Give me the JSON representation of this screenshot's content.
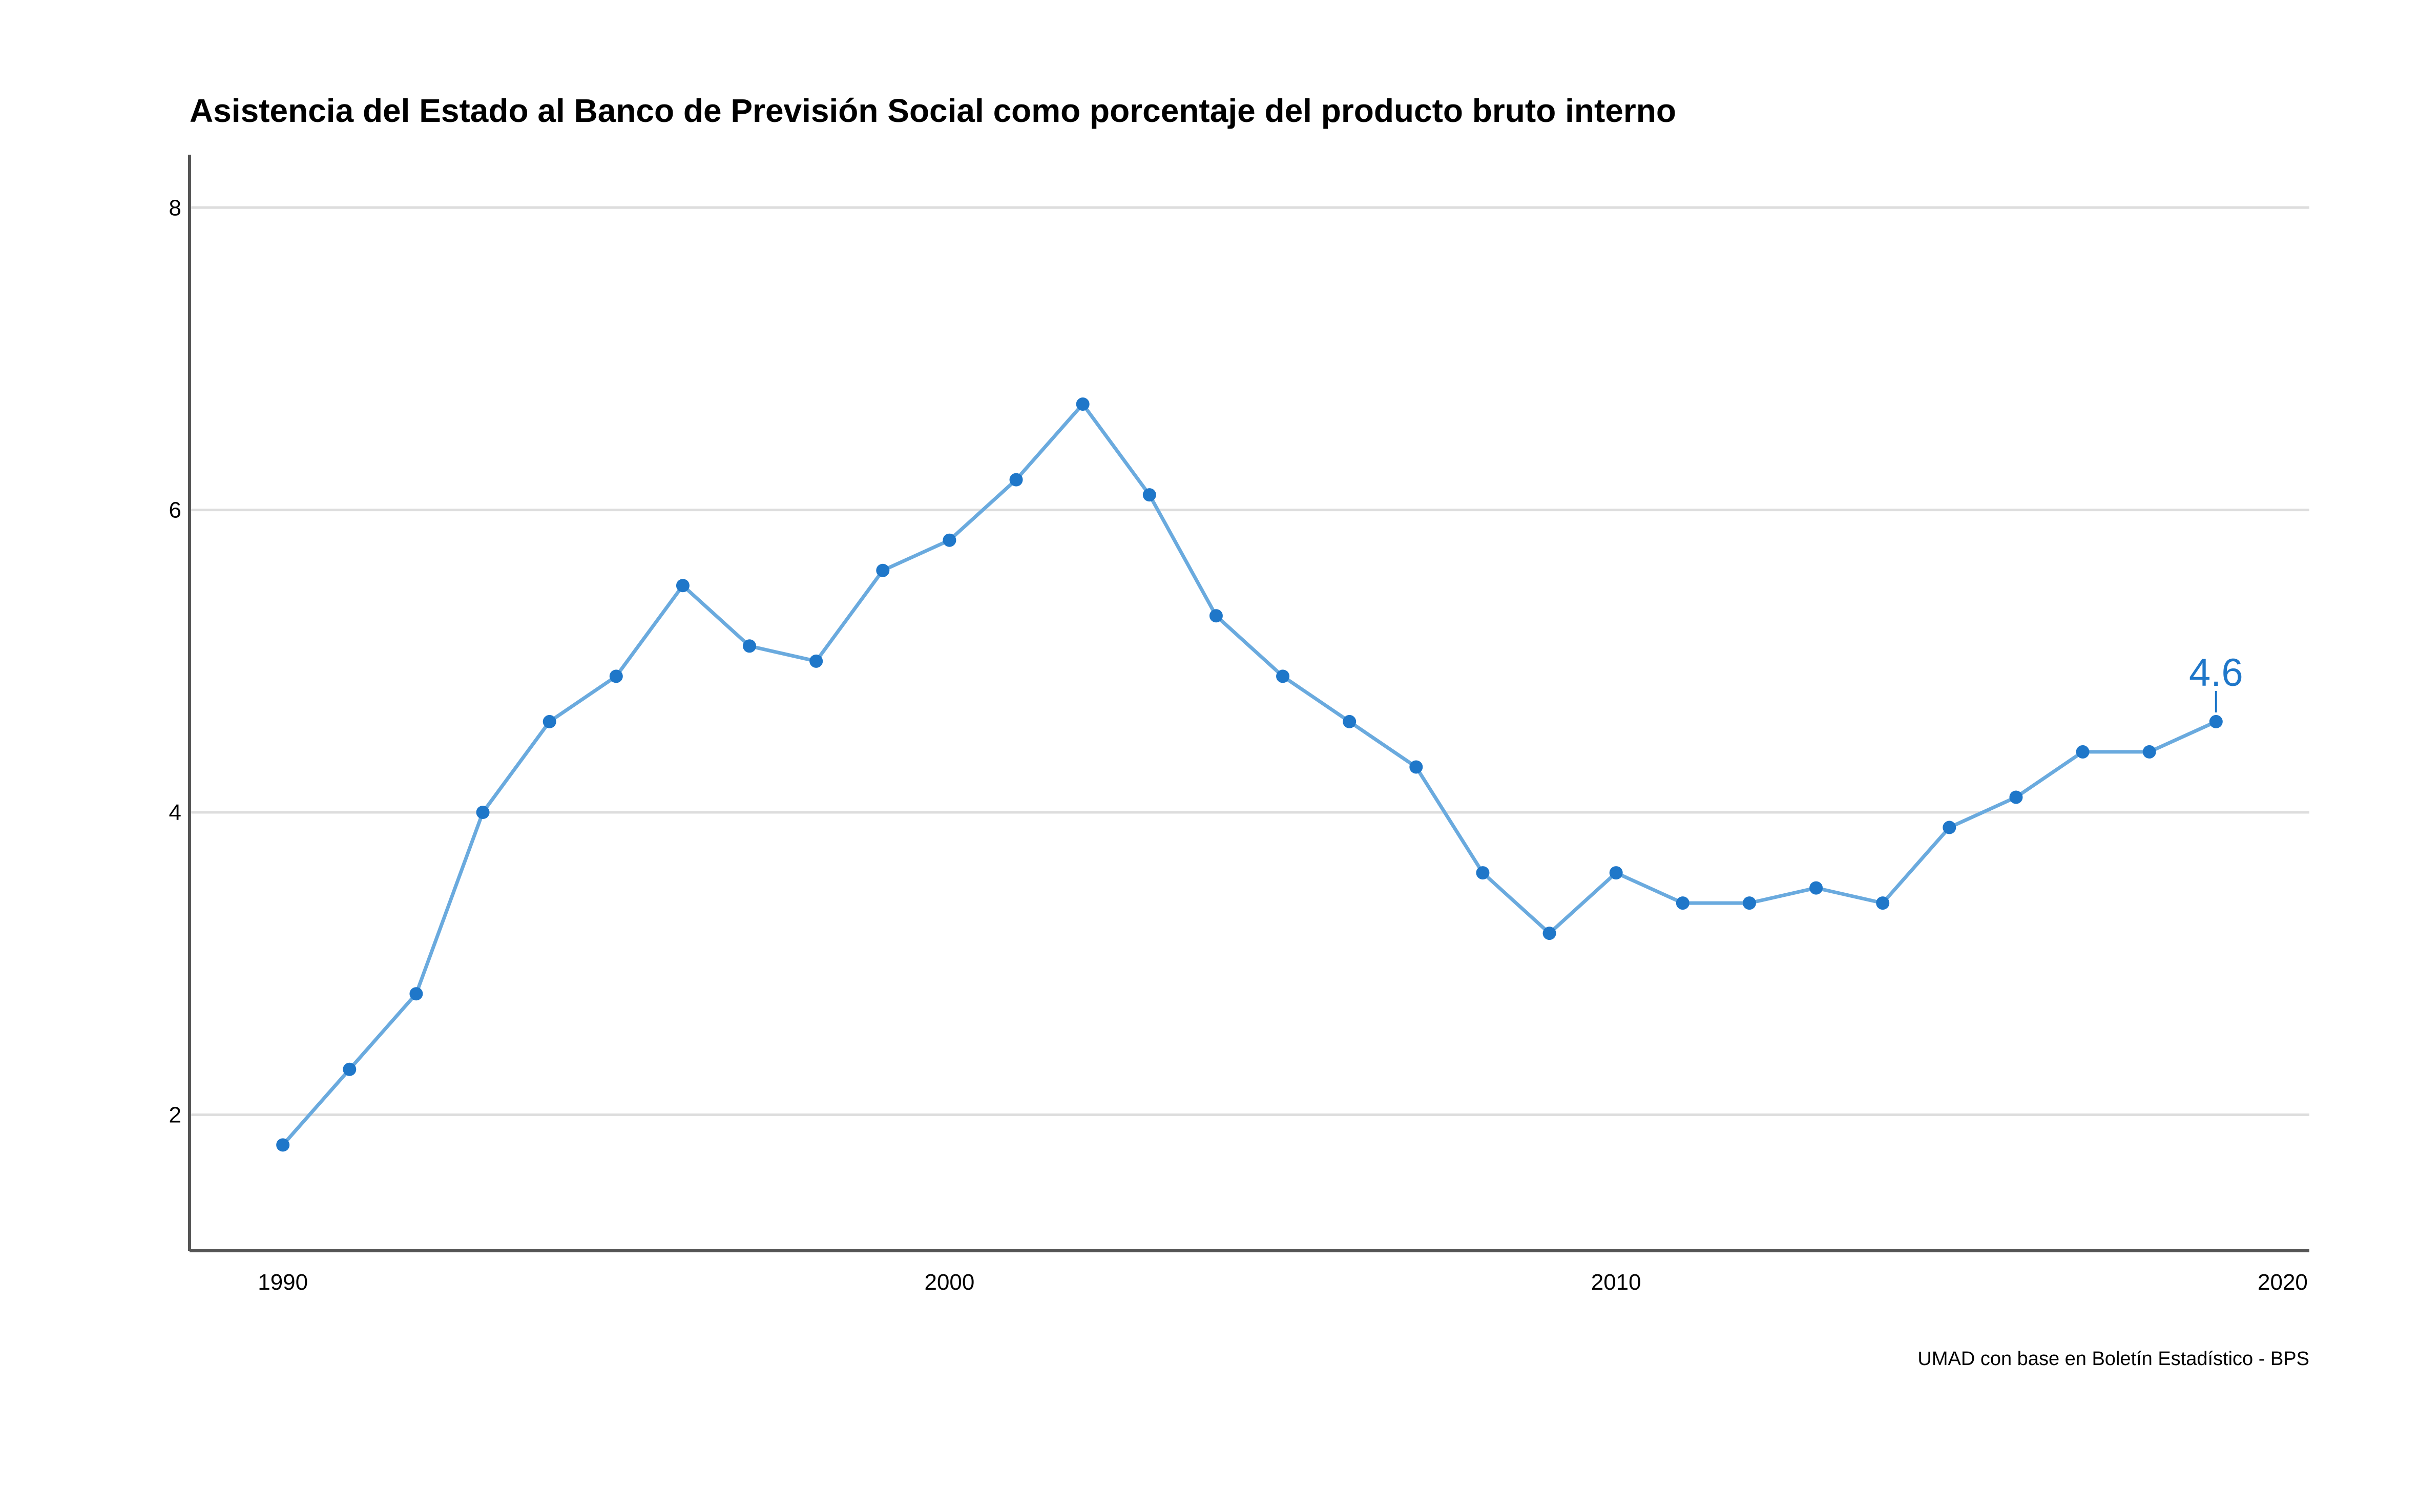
{
  "chart_data": {
    "type": "line",
    "title": "Asistencia del Estado al Banco de Previsión Social como porcentaje del producto bruto interno",
    "xlabel": "",
    "ylabel": "",
    "x": [
      1990,
      1991,
      1992,
      1993,
      1994,
      1995,
      1996,
      1997,
      1998,
      1999,
      2000,
      2001,
      2002,
      2003,
      2004,
      2005,
      2006,
      2007,
      2008,
      2009,
      2010,
      2011,
      2012,
      2013,
      2014,
      2015,
      2016,
      2017,
      2018,
      2019
    ],
    "series": [
      {
        "values": [
          1.8,
          2.3,
          2.8,
          4.0,
          4.6,
          4.9,
          5.5,
          5.1,
          5.0,
          5.6,
          5.8,
          6.2,
          6.7,
          6.1,
          5.3,
          4.9,
          4.6,
          4.3,
          3.6,
          3.2,
          3.6,
          3.4,
          3.4,
          3.5,
          3.4,
          3.9,
          4.1,
          4.4,
          4.4,
          4.6
        ],
        "line_color": "#6aaade",
        "point_color": "#1f77c9"
      }
    ],
    "xlim": [
      1988.6,
      2020.4
    ],
    "ylim": [
      1.1,
      8.35
    ],
    "x_ticks": [
      "1990",
      "2000",
      "2010",
      "2020"
    ],
    "y_ticks": [
      "2",
      "4",
      "6",
      "8"
    ],
    "grid": "horizontal",
    "annotation": {
      "x": 2019,
      "y": 4.6,
      "text": "4.6",
      "color": "#1f77c9"
    },
    "caption": "UMAD con base en Boletín Estadístico - BPS"
  }
}
